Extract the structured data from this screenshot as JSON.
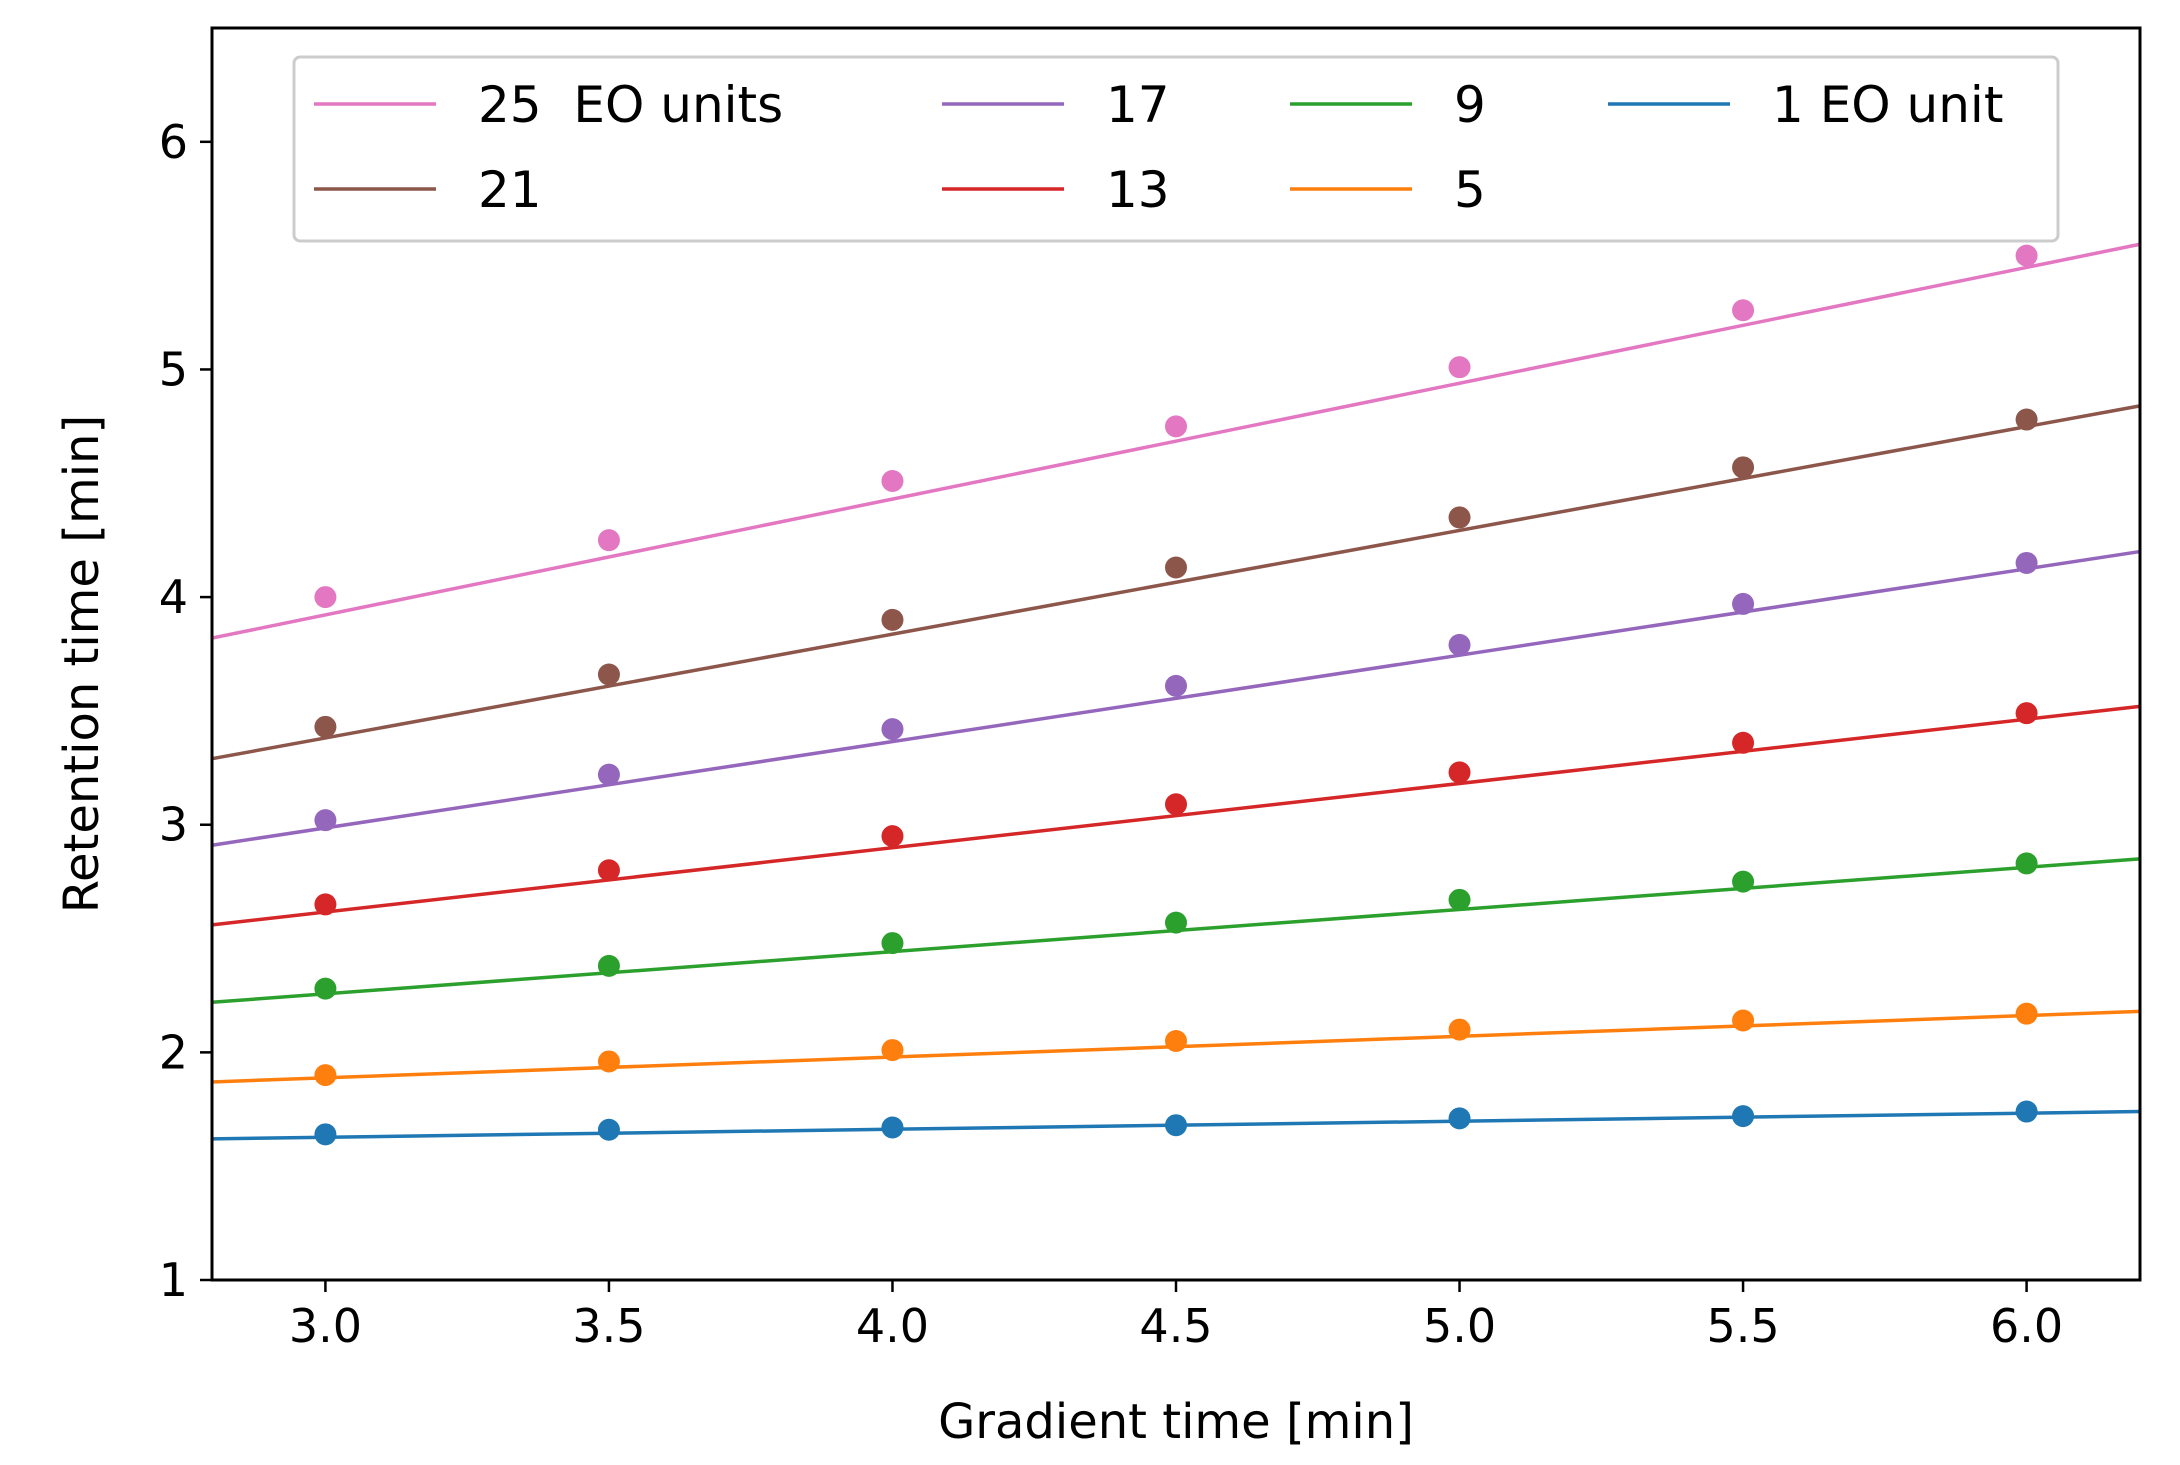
{
  "chart_data": {
    "type": "scatter",
    "title": "",
    "xlabel": "Gradient time [min]",
    "ylabel": "Retention time [min]",
    "xlim": [
      2.8,
      6.2
    ],
    "ylim": [
      1,
      6.5
    ],
    "xticks": [
      3.0,
      3.5,
      4.0,
      4.5,
      5.0,
      5.5,
      6.0
    ],
    "xtick_labels": [
      "3.0",
      "3.5",
      "4.0",
      "4.5",
      "5.0",
      "5.5",
      "6.0"
    ],
    "yticks": [
      1,
      2,
      3,
      4,
      5,
      6
    ],
    "ytick_labels": [
      "1",
      "2",
      "3",
      "4",
      "5",
      "6"
    ],
    "grid": false,
    "legend": {
      "placement": "top",
      "columns": 4
    },
    "x": [
      3.0,
      3.5,
      4.0,
      4.5,
      5.0,
      5.5,
      6.0
    ],
    "series": [
      {
        "name": "25  EO units",
        "color": "#e377c2",
        "points": [
          4.0,
          4.25,
          4.51,
          4.75,
          5.01,
          5.26,
          5.5
        ],
        "fit": [
          3.82,
          5.55
        ]
      },
      {
        "name": "21",
        "color": "#8c564b",
        "points": [
          3.43,
          3.66,
          3.9,
          4.13,
          4.35,
          4.57,
          4.78
        ],
        "fit": [
          3.29,
          4.84
        ]
      },
      {
        "name": "17",
        "color": "#9467bd",
        "points": [
          3.02,
          3.22,
          3.42,
          3.61,
          3.79,
          3.97,
          4.15
        ],
        "fit": [
          2.91,
          4.2
        ]
      },
      {
        "name": "13",
        "color": "#d62728",
        "points": [
          2.65,
          2.8,
          2.95,
          3.09,
          3.23,
          3.36,
          3.49
        ],
        "fit": [
          2.56,
          3.52
        ]
      },
      {
        "name": "9",
        "color": "#2ca02c",
        "points": [
          2.28,
          2.38,
          2.48,
          2.57,
          2.67,
          2.75,
          2.83
        ],
        "fit": [
          2.22,
          2.85
        ]
      },
      {
        "name": "5",
        "color": "#ff7f0e",
        "points": [
          1.9,
          1.96,
          2.01,
          2.05,
          2.1,
          2.14,
          2.17
        ],
        "fit": [
          1.87,
          2.18
        ]
      },
      {
        "name": "1 EO unit",
        "color": "#1f77b4",
        "points": [
          1.64,
          1.66,
          1.67,
          1.68,
          1.71,
          1.72,
          1.74
        ],
        "fit": [
          1.62,
          1.74
        ]
      }
    ],
    "legend_order": [
      0,
      2,
      4,
      6,
      1,
      3,
      5
    ]
  }
}
